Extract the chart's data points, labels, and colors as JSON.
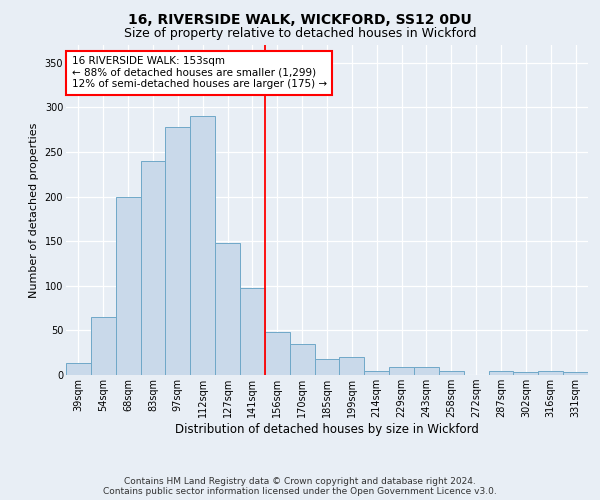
{
  "title_line1": "16, RIVERSIDE WALK, WICKFORD, SS12 0DU",
  "title_line2": "Size of property relative to detached houses in Wickford",
  "xlabel": "Distribution of detached houses by size in Wickford",
  "ylabel": "Number of detached properties",
  "categories": [
    "39sqm",
    "54sqm",
    "68sqm",
    "83sqm",
    "97sqm",
    "112sqm",
    "127sqm",
    "141sqm",
    "156sqm",
    "170sqm",
    "185sqm",
    "199sqm",
    "214sqm",
    "229sqm",
    "243sqm",
    "258sqm",
    "272sqm",
    "287sqm",
    "302sqm",
    "316sqm",
    "331sqm"
  ],
  "bar_heights": [
    13,
    65,
    200,
    240,
    278,
    290,
    148,
    97,
    48,
    35,
    18,
    20,
    4,
    9,
    9,
    4,
    0,
    5,
    3,
    5,
    3
  ],
  "bar_color_fill": "#c9d9ea",
  "bar_color_edge": "#6fa8c8",
  "ylim": [
    0,
    370
  ],
  "yticks": [
    0,
    50,
    100,
    150,
    200,
    250,
    300,
    350
  ],
  "vline_x": 7.5,
  "annotation_title": "16 RIVERSIDE WALK: 153sqm",
  "annotation_line1": "← 88% of detached houses are smaller (1,299)",
  "annotation_line2": "12% of semi-detached houses are larger (175) →",
  "footer_line1": "Contains HM Land Registry data © Crown copyright and database right 2024.",
  "footer_line2": "Contains public sector information licensed under the Open Government Licence v3.0.",
  "background_color": "#e8eef5",
  "grid_color": "#ffffff",
  "title_fontsize": 10,
  "subtitle_fontsize": 9,
  "ylabel_fontsize": 8,
  "xlabel_fontsize": 8.5,
  "tick_fontsize": 7,
  "annot_fontsize": 7.5,
  "footer_fontsize": 6.5
}
